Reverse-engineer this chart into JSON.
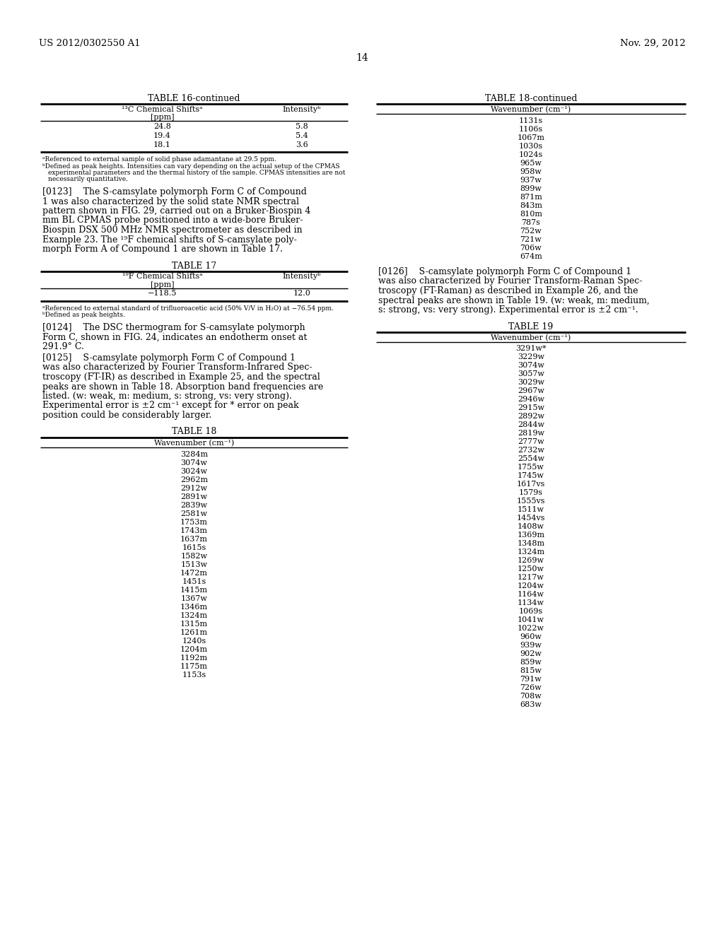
{
  "header_left": "US 2012/0302550 A1",
  "header_right": "Nov. 29, 2012",
  "page_number": "14",
  "background_color": "#ffffff",
  "text_color": "#000000",
  "table16_title": "TABLE 16-continued",
  "table16_col1_header_line1": "¹³C Chemical Shiftsᵃ",
  "table16_col1_header_line2": "[ppm]",
  "table16_col2_header": "Intensityᵇ",
  "table16_data": [
    [
      "24.8",
      "5.8"
    ],
    [
      "19.4",
      "5.4"
    ],
    [
      "18.1",
      "3.6"
    ]
  ],
  "table16_footnote_a": "ᵃReferenced to external sample of solid phase adamantane at 29.5 ppm.",
  "table16_footnote_b1": "ᵇDefined as peak heights. Intensities can vary depending on the actual setup of the CPMAS",
  "table16_footnote_b2": "experimental parameters and the thermal history of the sample. CPMAS intensities are not",
  "table16_footnote_b3": "necessarily quantitative.",
  "para0123_lines": [
    "[0123]    The S-camsylate polymorph Form C of Compound",
    "1 was also characterized by the solid state NMR spectral",
    "pattern shown in FIG. 29, carried out on a Bruker-Biospin 4",
    "mm BL CPMAS probe positioned into a wide-bore Bruker-",
    "Biospin DSX 500 MHz NMR spectrometer as described in",
    "Example 23. The ¹⁹F chemical shifts of S-camsylate poly-",
    "morph Form A of Compound 1 are shown in Table 17."
  ],
  "table17_title": "TABLE 17",
  "table17_col1_header_line1": "¹⁹F Chemical Shiftsᵃ",
  "table17_col1_header_line2": "[ppm]",
  "table17_col2_header": "Intensityᵇ",
  "table17_data": [
    [
      "−118.5",
      "12.0"
    ]
  ],
  "table17_footnote_a": "ᵃReferenced to external standard of trifluoroacetic acid (50% V/V in H₂O) at −76.54 ppm.",
  "table17_footnote_b": "ᵇDefined as peak heights.",
  "para0124_lines": [
    "[0124]    The DSC thermogram for S-camsylate polymorph",
    "Form C, shown in FIG. 24, indicates an endotherm onset at",
    "291.9° C."
  ],
  "para0125_lines": [
    "[0125]    S-camsylate polymorph Form C of Compound 1",
    "was also characterized by Fourier Transform-Infrared Spec-",
    "troscopy (FT-IR) as described in Example 25, and the spectral",
    "peaks are shown in Table 18. Absorption band frequencies are",
    "listed. (w: weak, m: medium, s: strong, vs: very strong).",
    "Experimental error is ±2 cm⁻¹ except for * error on peak",
    "position could be considerably larger."
  ],
  "table18_title": "TABLE 18",
  "table18_col_header": "Wavenumber (cm⁻¹)",
  "table18_data": [
    "3284m",
    "3074w",
    "3024w",
    "2962m",
    "2912w",
    "2891w",
    "2839w",
    "2581w",
    "1753m",
    "1743m",
    "1637m",
    "1615s",
    "1582w",
    "1513w",
    "1472m",
    "1451s",
    "1415m",
    "1367w",
    "1346m",
    "1324m",
    "1315m",
    "1261m",
    "1240s",
    "1204m",
    "1192m",
    "1175m",
    "1153s"
  ],
  "table18cont_title": "TABLE 18-continued",
  "table18cont_col_header": "Wavenumber (cm⁻¹)",
  "table18cont_data": [
    "1131s",
    "1106s",
    "1067m",
    "1030s",
    "1024s",
    "965w",
    "958w",
    "937w",
    "899w",
    "871m",
    "843m",
    "810m",
    "787s",
    "752w",
    "721w",
    "706w",
    "674m"
  ],
  "para0126_lines": [
    "[0126]    S-camsylate polymorph Form C of Compound 1",
    "was also characterized by Fourier Transform-Raman Spec-",
    "troscopy (FT-Raman) as described in Example 26, and the",
    "spectral peaks are shown in Table 19. (w: weak, m: medium,",
    "s: strong, vs: very strong). Experimental error is ±2 cm⁻¹."
  ],
  "table19_title": "TABLE 19",
  "table19_col_header": "Wavenumber (cm⁻¹)",
  "table19_data": [
    "3291w*",
    "3229w",
    "3074w",
    "3057w",
    "3029w",
    "2967w",
    "2946w",
    "2915w",
    "2892w",
    "2844w",
    "2819w",
    "2777w",
    "2732w",
    "2554w",
    "1755w",
    "1745w",
    "1617vs",
    "1579s",
    "1555vs",
    "1511w",
    "1454vs",
    "1408w",
    "1369m",
    "1348m",
    "1324m",
    "1269w",
    "1250w",
    "1217w",
    "1204w",
    "1164w",
    "1134w",
    "1069s",
    "1041w",
    "1022w",
    "960w",
    "939w",
    "902w",
    "859w",
    "815w",
    "791w",
    "726w",
    "708w",
    "683w"
  ]
}
